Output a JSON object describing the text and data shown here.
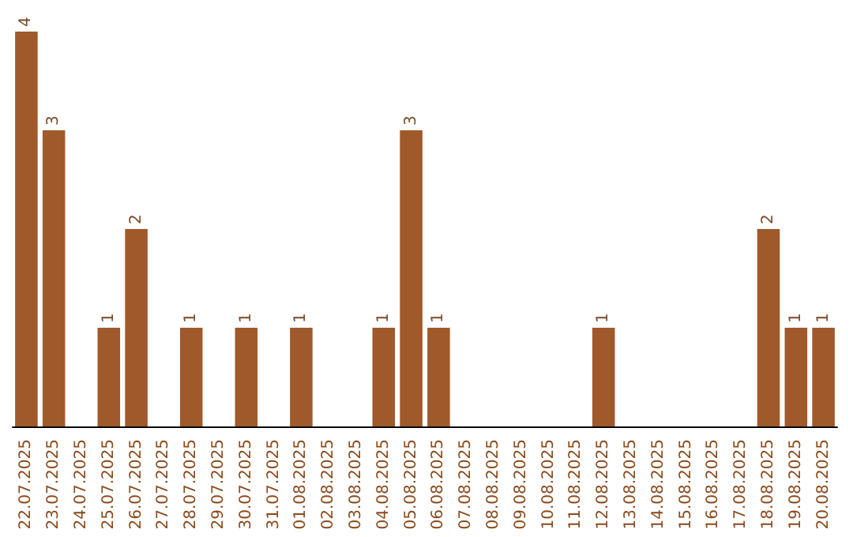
{
  "chart_data": {
    "type": "bar",
    "categories": [
      "22.07.2025",
      "23.07.2025",
      "24.07.2025",
      "25.07.2025",
      "26.07.2025",
      "27.07.2025",
      "28.07.2025",
      "29.07.2025",
      "30.07.2025",
      "31.07.2025",
      "01.08.2025",
      "02.08.2025",
      "03.08.2025",
      "04.08.2025",
      "05.08.2025",
      "06.08.2025",
      "07.08.2025",
      "08.08.2025",
      "09.08.2025",
      "10.08.2025",
      "11.08.2025",
      "12.08.2025",
      "13.08.2025",
      "14.08.2025",
      "15.08.2025",
      "16.08.2025",
      "17.08.2025",
      "18.08.2025",
      "19.08.2025",
      "20.08.2025"
    ],
    "values": [
      4,
      3,
      0,
      1,
      2,
      0,
      1,
      0,
      1,
      0,
      1,
      0,
      0,
      1,
      3,
      1,
      0,
      0,
      0,
      0,
      0,
      1,
      0,
      0,
      0,
      0,
      0,
      2,
      1,
      1
    ],
    "value_labels": [
      "4",
      "3",
      null,
      "1",
      "2",
      null,
      "1",
      null,
      "1",
      null,
      "1",
      null,
      null,
      "1",
      "3",
      "1",
      null,
      null,
      null,
      null,
      null,
      "1",
      null,
      null,
      null,
      null,
      null,
      "2",
      "1",
      "1"
    ],
    "color": "#a0592b",
    "grid": false
  }
}
